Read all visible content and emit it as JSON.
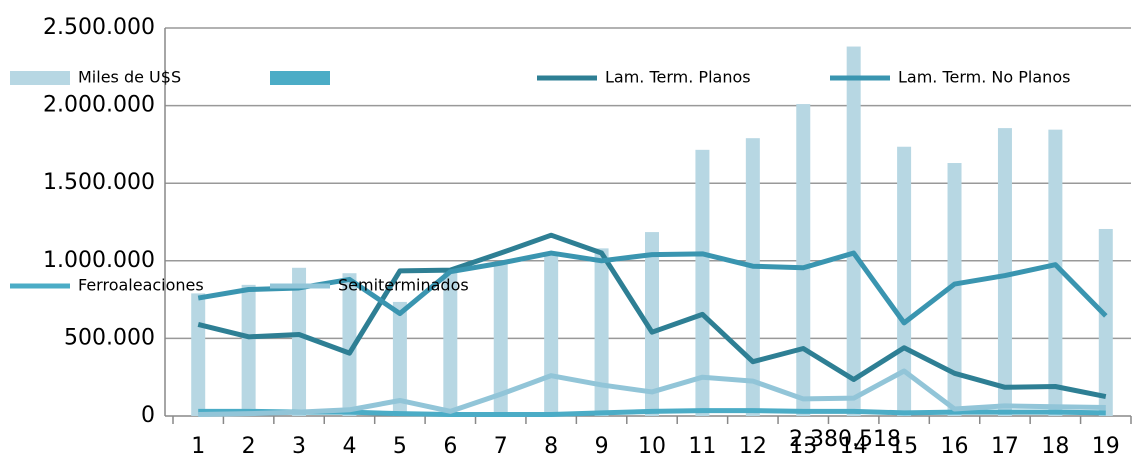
{
  "chart_data": {
    "type": "bar-line",
    "categories": [
      "1",
      "2",
      "3",
      "4",
      "5",
      "6",
      "7",
      "8",
      "9",
      "10",
      "11",
      "12",
      "13",
      "14",
      "15",
      "16",
      "17",
      "18",
      "19"
    ],
    "ylim": [
      0,
      2500000
    ],
    "yticks": [
      0,
      {
        "value": 500000,
        "label": "500.000"
      },
      {
        "value": 1000000,
        "label": "1.000.000"
      },
      {
        "value": 1500000,
        "label": "1.500.000"
      },
      {
        "value": 2000000,
        "label": "2.000.000"
      },
      {
        "value": 2500000,
        "label": "2.500.000"
      }
    ],
    "grid": true,
    "series": [
      {
        "name": "Miles de U$S",
        "kind": "bar",
        "color": "#b7d7e3",
        "values": [
          790000,
          845000,
          955000,
          920000,
          735000,
          940000,
          985000,
          1040000,
          1080000,
          1185000,
          1715000,
          1790000,
          2010000,
          2380518,
          1735000,
          1630000,
          1855000,
          1845000,
          1205000
        ],
        "value_labels": [
          null,
          null,
          null,
          null,
          null,
          null,
          null,
          null,
          null,
          null,
          null,
          null,
          null,
          "2.380.518",
          null,
          null,
          null,
          null,
          null
        ]
      },
      {
        "name": "Lam. Term. Planos",
        "kind": "line",
        "color": "#2e7f94",
        "values": [
          590000,
          510000,
          525000,
          405000,
          935000,
          940000,
          1050000,
          1165000,
          1050000,
          540000,
          655000,
          350000,
          435000,
          235000,
          440000,
          275000,
          185000,
          190000,
          125000
        ]
      },
      {
        "name": "Lam. Term. No Planos",
        "kind": "line",
        "color": "#3a95b0",
        "values": [
          760000,
          815000,
          825000,
          880000,
          660000,
          930000,
          985000,
          1050000,
          1000000,
          1040000,
          1045000,
          965000,
          955000,
          1050000,
          600000,
          850000,
          905000,
          975000,
          645000
        ]
      },
      {
        "name": "Ferroaleaciones",
        "kind": "line",
        "color": "#4bacc6",
        "values": [
          30000,
          30000,
          25000,
          25000,
          15000,
          10000,
          10000,
          10000,
          20000,
          30000,
          35000,
          35000,
          30000,
          30000,
          20000,
          25000,
          25000,
          25000,
          20000
        ]
      },
      {
        "name": "Semiterminados",
        "kind": "line",
        "color": "#92c5d8",
        "values": [
          10000,
          15000,
          25000,
          40000,
          100000,
          30000,
          140000,
          260000,
          200000,
          155000,
          250000,
          225000,
          110000,
          115000,
          290000,
          45000,
          65000,
          60000,
          55000
        ]
      }
    ]
  }
}
